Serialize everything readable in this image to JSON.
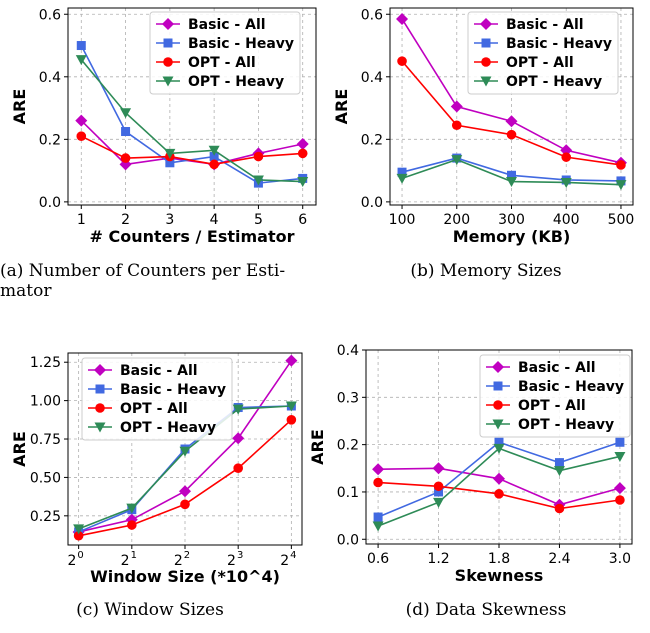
{
  "colors": {
    "purple": "#c000c0",
    "blue": "#4169e1",
    "red": "#ff0000",
    "green": "#2e8b57",
    "grid": "#b0b0b0"
  },
  "chart_data": [
    {
      "type": "line",
      "caption": "(a) Number of Counters per Estimator",
      "caption_lines": [
        "(a) Number of Counters per Esti-",
        "mator"
      ],
      "xlabel": "# Counters / Estimator",
      "ylabel": "ARE",
      "x": [
        1,
        2,
        3,
        4,
        5,
        6
      ],
      "xticks": [
        "1",
        "2",
        "3",
        "4",
        "5",
        "6"
      ],
      "ylim": [
        -0.01,
        0.62
      ],
      "yticks": [
        0.0,
        0.2,
        0.4,
        0.6
      ],
      "ytick_labels": [
        "0.0",
        "0.2",
        "0.4",
        "0.6"
      ],
      "grid": true,
      "legend_position": "top-right",
      "series": [
        {
          "name": "Basic - All",
          "color": "purple",
          "marker": "diamond",
          "values": [
            0.26,
            0.12,
            0.14,
            0.12,
            0.155,
            0.185
          ]
        },
        {
          "name": "Basic - Heavy",
          "color": "blue",
          "marker": "square",
          "values": [
            0.5,
            0.225,
            0.125,
            0.145,
            0.06,
            0.075
          ]
        },
        {
          "name": "OPT - All",
          "color": "red",
          "marker": "circle",
          "values": [
            0.21,
            0.14,
            0.145,
            0.12,
            0.145,
            0.155
          ]
        },
        {
          "name": "OPT - Heavy",
          "color": "green",
          "marker": "triangle-down",
          "values": [
            0.455,
            0.285,
            0.155,
            0.165,
            0.07,
            0.065
          ]
        }
      ]
    },
    {
      "type": "line",
      "caption": "(b) Memory Sizes",
      "caption_lines": [
        "(b) Memory Sizes"
      ],
      "xlabel": "Memory (KB)",
      "ylabel": "ARE",
      "x": [
        100,
        200,
        300,
        400,
        500
      ],
      "xticks": [
        "100",
        "200",
        "300",
        "400",
        "500"
      ],
      "ylim": [
        -0.01,
        0.62
      ],
      "yticks": [
        0.0,
        0.2,
        0.4,
        0.6
      ],
      "ytick_labels": [
        "0.0",
        "0.2",
        "0.4",
        "0.6"
      ],
      "grid": true,
      "legend_position": "top-right",
      "series": [
        {
          "name": "Basic - All",
          "color": "purple",
          "marker": "diamond",
          "values": [
            0.585,
            0.305,
            0.258,
            0.165,
            0.125
          ]
        },
        {
          "name": "Basic - Heavy",
          "color": "blue",
          "marker": "square",
          "values": [
            0.095,
            0.14,
            0.085,
            0.07,
            0.067
          ]
        },
        {
          "name": "OPT - All",
          "color": "red",
          "marker": "circle",
          "values": [
            0.45,
            0.245,
            0.215,
            0.143,
            0.118
          ]
        },
        {
          "name": "OPT - Heavy",
          "color": "green",
          "marker": "triangle-down",
          "values": [
            0.075,
            0.135,
            0.065,
            0.062,
            0.055
          ]
        }
      ]
    },
    {
      "type": "line",
      "caption": "(c) Window Sizes",
      "caption_lines": [
        "(c) Window Sizes"
      ],
      "xlabel": "Window Size (*10^4)",
      "ylabel": "ARE",
      "x": [
        1,
        2,
        4,
        8,
        16
      ],
      "xticks": [
        "2^0",
        "2^1",
        "2^2",
        "2^3",
        "2^4"
      ],
      "xticks_base": [
        "2",
        "2",
        "2",
        "2",
        "2"
      ],
      "xticks_exp": [
        "0",
        "1",
        "2",
        "3",
        "4"
      ],
      "xscale": "log2",
      "ylim": [
        0.06,
        1.31
      ],
      "yticks": [
        0.25,
        0.5,
        0.75,
        1.0,
        1.25
      ],
      "ytick_labels": [
        "0.25",
        "0.50",
        "0.75",
        "1.00",
        "1.25"
      ],
      "grid": true,
      "legend_position": "top-left",
      "series": [
        {
          "name": "Basic - All",
          "color": "purple",
          "marker": "diamond",
          "values": [
            0.145,
            0.225,
            0.41,
            0.755,
            1.26
          ]
        },
        {
          "name": "Basic - Heavy",
          "color": "blue",
          "marker": "square",
          "values": [
            0.145,
            0.29,
            0.685,
            0.955,
            0.965
          ]
        },
        {
          "name": "OPT - All",
          "color": "red",
          "marker": "circle",
          "values": [
            0.12,
            0.19,
            0.325,
            0.56,
            0.875
          ]
        },
        {
          "name": "OPT - Heavy",
          "color": "green",
          "marker": "triangle-down",
          "values": [
            0.165,
            0.3,
            0.67,
            0.945,
            0.965
          ]
        }
      ]
    },
    {
      "type": "line",
      "caption": "(d) Data Skewness",
      "caption_lines": [
        "(d) Data Skewness"
      ],
      "xlabel": "Skewness",
      "ylabel": "ARE",
      "x": [
        0.6,
        1.2,
        1.8,
        2.4,
        3.0
      ],
      "xticks": [
        "0.6",
        "1.2",
        "1.8",
        "2.4",
        "3.0"
      ],
      "ylim": [
        -0.01,
        0.4
      ],
      "yticks": [
        0.0,
        0.1,
        0.2,
        0.3,
        0.4
      ],
      "ytick_labels": [
        "0.0",
        "0.1",
        "0.2",
        "0.3",
        "0.4"
      ],
      "grid": true,
      "legend_position": "top-right",
      "series": [
        {
          "name": "Basic - All",
          "color": "purple",
          "marker": "diamond",
          "values": [
            0.148,
            0.15,
            0.128,
            0.073,
            0.108
          ]
        },
        {
          "name": "Basic - Heavy",
          "color": "blue",
          "marker": "square",
          "values": [
            0.047,
            0.1,
            0.205,
            0.162,
            0.205
          ]
        },
        {
          "name": "OPT - All",
          "color": "red",
          "marker": "circle",
          "values": [
            0.12,
            0.112,
            0.096,
            0.065,
            0.083
          ]
        },
        {
          "name": "OPT - Heavy",
          "color": "green",
          "marker": "triangle-down",
          "values": [
            0.028,
            0.078,
            0.192,
            0.145,
            0.175
          ]
        }
      ]
    }
  ]
}
